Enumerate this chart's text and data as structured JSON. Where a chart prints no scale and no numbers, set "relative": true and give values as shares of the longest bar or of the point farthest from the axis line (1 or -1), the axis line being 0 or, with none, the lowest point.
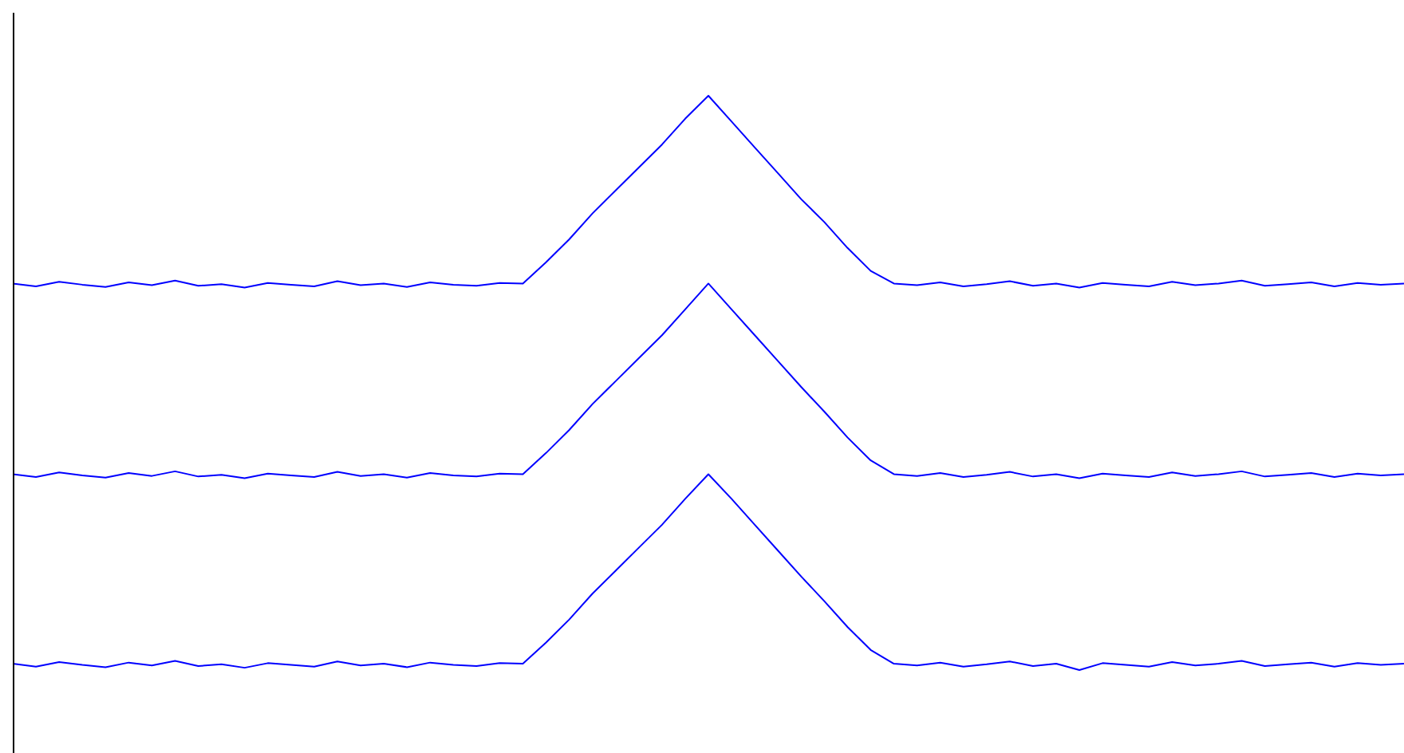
{
  "chart_data": {
    "type": "line",
    "relative": true,
    "grid": false,
    "legend": false,
    "marker": "none",
    "line_style": "solid",
    "categories": [
      null,
      null,
      null,
      null,
      null,
      null,
      null,
      null,
      null,
      null,
      null,
      null,
      null,
      null,
      null,
      null,
      null,
      null,
      null,
      null,
      null,
      null,
      null,
      null,
      null,
      null,
      null,
      null,
      null,
      null,
      null,
      null,
      null,
      null,
      null,
      null,
      null,
      null,
      null,
      null,
      null,
      null,
      null,
      null,
      null,
      null,
      null,
      null,
      null,
      null,
      null,
      null,
      null,
      null,
      null,
      null,
      null,
      null,
      null,
      null,
      null
    ],
    "series": [
      {
        "color": "#0000ff",
        "values": [
          0.673,
          0.668,
          0.676,
          0.671,
          0.667,
          0.675,
          0.67,
          0.678,
          0.669,
          0.672,
          0.666,
          0.674,
          0.671,
          0.668,
          0.677,
          0.67,
          0.673,
          0.667,
          0.675,
          0.671,
          0.669,
          0.674,
          0.673,
          0.71,
          0.75,
          0.795,
          0.835,
          0.875,
          0.915,
          0.96,
          1.0,
          0.955,
          0.91,
          0.865,
          0.82,
          0.78,
          0.735,
          0.695,
          0.673,
          0.67,
          0.675,
          0.668,
          0.672,
          0.677,
          0.669,
          0.673,
          0.666,
          0.674,
          0.671,
          0.668,
          0.676,
          0.67,
          0.673,
          0.678,
          0.669,
          0.672,
          0.675,
          0.668,
          0.674,
          0.671,
          0.673
        ]
      },
      {
        "color": "#0000ff",
        "values": [
          0.341,
          0.336,
          0.344,
          0.339,
          0.335,
          0.343,
          0.338,
          0.346,
          0.337,
          0.34,
          0.334,
          0.342,
          0.339,
          0.336,
          0.345,
          0.338,
          0.341,
          0.335,
          0.343,
          0.339,
          0.337,
          0.342,
          0.341,
          0.378,
          0.418,
          0.463,
          0.503,
          0.543,
          0.583,
          0.628,
          0.673,
          0.628,
          0.583,
          0.538,
          0.493,
          0.45,
          0.405,
          0.365,
          0.341,
          0.338,
          0.343,
          0.336,
          0.34,
          0.345,
          0.337,
          0.341,
          0.334,
          0.342,
          0.339,
          0.336,
          0.344,
          0.338,
          0.341,
          0.346,
          0.337,
          0.34,
          0.343,
          0.336,
          0.342,
          0.339,
          0.341
        ]
      },
      {
        "color": "#0000ff",
        "values": [
          0.011,
          0.006,
          0.014,
          0.009,
          0.005,
          0.013,
          0.008,
          0.016,
          0.007,
          0.01,
          0.004,
          0.012,
          0.009,
          0.006,
          0.015,
          0.008,
          0.011,
          0.005,
          0.013,
          0.009,
          0.007,
          0.012,
          0.011,
          0.048,
          0.088,
          0.133,
          0.173,
          0.213,
          0.253,
          0.298,
          0.341,
          0.298,
          0.253,
          0.208,
          0.163,
          0.12,
          0.075,
          0.035,
          0.011,
          0.008,
          0.013,
          0.006,
          0.01,
          0.015,
          0.007,
          0.011,
          0.0,
          0.012,
          0.009,
          0.006,
          0.014,
          0.008,
          0.011,
          0.016,
          0.007,
          0.01,
          0.013,
          0.006,
          0.012,
          0.009,
          0.011
        ]
      }
    ]
  }
}
